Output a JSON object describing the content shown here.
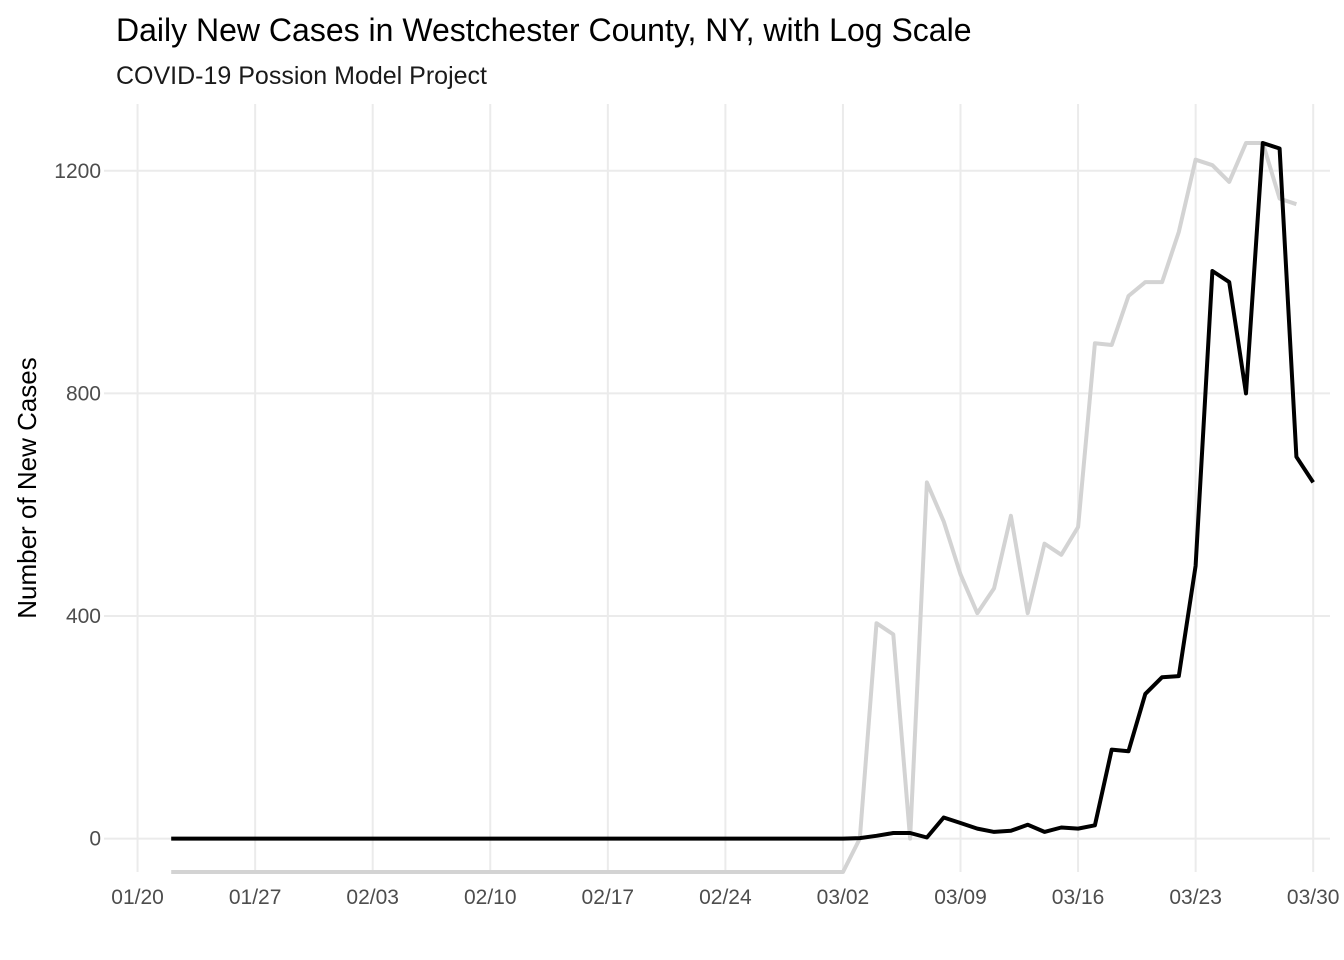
{
  "chart_data": {
    "type": "line",
    "title": "Daily New Cases in Westchester County, NY, with Log Scale",
    "subtitle": "COVID-19 Possion Model Project",
    "xlabel": "",
    "ylabel": "Number of New Cases",
    "x_tick_labels": [
      "01/20",
      "01/27",
      "02/03",
      "02/10",
      "02/17",
      "02/24",
      "03/02",
      "03/09",
      "03/16",
      "03/23",
      "03/30"
    ],
    "y_ticks": [
      0,
      400,
      800,
      1200
    ],
    "xlim": [
      "2020-01-18",
      "2020-03-31"
    ],
    "ylim": [
      -60,
      1320
    ],
    "grid": true,
    "legend": "none",
    "x_start": "2020-01-22",
    "series": [
      {
        "color": "#000000",
        "values": [
          0,
          0,
          0,
          0,
          0,
          0,
          0,
          0,
          0,
          0,
          0,
          0,
          0,
          0,
          0,
          0,
          0,
          0,
          0,
          0,
          0,
          0,
          0,
          0,
          0,
          0,
          0,
          0,
          0,
          0,
          0,
          0,
          0,
          0,
          0,
          0,
          0,
          0,
          0,
          0,
          0,
          1,
          5,
          10,
          10,
          2,
          38,
          28,
          18,
          12,
          14,
          25,
          12,
          20,
          18,
          24,
          160,
          157,
          260,
          290,
          292,
          490,
          1020,
          1000,
          800,
          1250,
          1240,
          686,
          640
        ]
      },
      {
        "color": "#d3d3d3",
        "values": [
          -60,
          -60,
          -60,
          -60,
          -60,
          -60,
          -60,
          -60,
          -60,
          -60,
          -60,
          -60,
          -60,
          -60,
          -60,
          -60,
          -60,
          -60,
          -60,
          -60,
          -60,
          -60,
          -60,
          -60,
          -60,
          -60,
          -60,
          -60,
          -60,
          -60,
          -60,
          -60,
          -60,
          -60,
          -60,
          -60,
          -60,
          -60,
          -60,
          -60,
          -60,
          0,
          387,
          367,
          0,
          640,
          570,
          475,
          405,
          450,
          580,
          405,
          530,
          510,
          560,
          890,
          887,
          975,
          1000,
          1000,
          1090,
          1220,
          1210,
          1180,
          1250,
          1250,
          1150,
          1140
        ]
      }
    ]
  }
}
